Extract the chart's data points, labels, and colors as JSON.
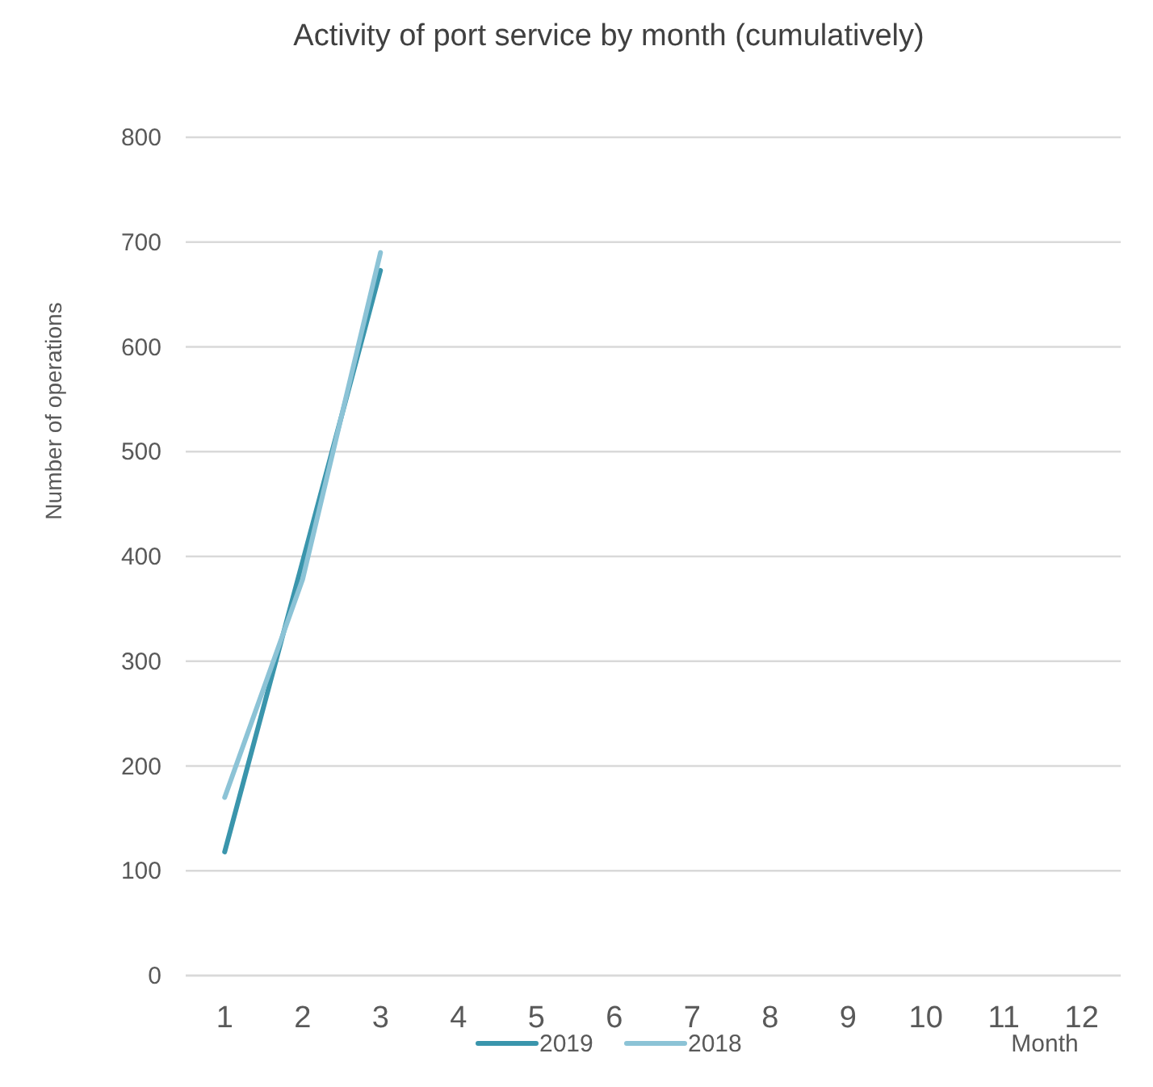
{
  "chart_data": {
    "type": "line",
    "title": "Activity of port service by month (cumulatively)",
    "xlabel": "Month",
    "ylabel": "Number of operations",
    "x": [
      1,
      2,
      3
    ],
    "series": [
      {
        "name": "2019",
        "color": "#3a95ac",
        "values": [
          118,
          395,
          673
        ]
      },
      {
        "name": "2018",
        "color": "#8cc3d6",
        "values": [
          170,
          378,
          690
        ]
      }
    ],
    "xlim": [
      0.5,
      12.5
    ],
    "xticks": [
      1,
      2,
      3,
      4,
      5,
      6,
      7,
      8,
      9,
      10,
      11,
      12
    ],
    "ylim": [
      0,
      800
    ],
    "yticks": [
      0,
      100,
      200,
      300,
      400,
      500,
      600,
      700,
      800
    ],
    "grid": "y",
    "legend": "bottom",
    "marker": "none",
    "line_style": "solid"
  }
}
